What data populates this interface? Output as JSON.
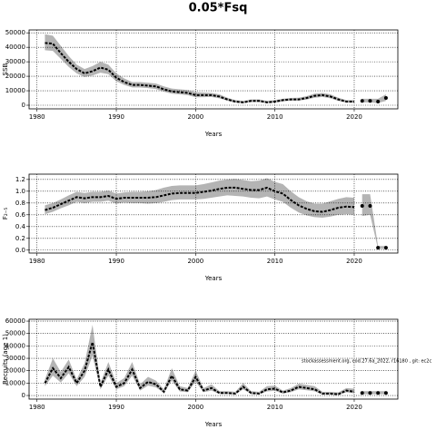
{
  "title": "0.05*Fsq",
  "chart_data": [
    {
      "type": "line",
      "ylabel": "SSB",
      "xlabel": "Years",
      "color": "#000000",
      "band_color": "#b4b4b4",
      "grid": true,
      "xlim": [
        1979,
        2025.5
      ],
      "xticks": [
        1980,
        1990,
        2000,
        2010,
        2020
      ],
      "ylim": [
        -2500,
        52000
      ],
      "yticks": [
        0,
        10000,
        20000,
        30000,
        40000,
        50000
      ],
      "x": [
        1981,
        1982,
        1983,
        1984,
        1985,
        1986,
        1987,
        1988,
        1989,
        1990,
        1991,
        1992,
        1993,
        1994,
        1995,
        1996,
        1997,
        1998,
        1999,
        2000,
        2001,
        2002,
        2003,
        2004,
        2005,
        2006,
        2007,
        2008,
        2009,
        2010,
        2011,
        2012,
        2013,
        2014,
        2015,
        2016,
        2017,
        2018,
        2019,
        2020
      ],
      "values": [
        43000,
        42500,
        36000,
        30000,
        25000,
        22000,
        23500,
        26000,
        24500,
        19000,
        16000,
        14000,
        14000,
        13500,
        13000,
        11000,
        9500,
        9000,
        8500,
        7000,
        7000,
        7000,
        6000,
        4000,
        2500,
        2000,
        3000,
        3000,
        2000,
        2500,
        3500,
        4000,
        4000,
        5000,
        6500,
        7000,
        6000,
        4000,
        2500,
        2500
      ],
      "upper": [
        49000,
        48000,
        41000,
        34000,
        28000,
        25000,
        27000,
        30000,
        28000,
        22000,
        18500,
        16000,
        16000,
        15500,
        15000,
        13000,
        11500,
        11000,
        10500,
        9000,
        8800,
        8500,
        7500,
        5200,
        3500,
        3000,
        4000,
        4000,
        3000,
        3500,
        4500,
        5000,
        5200,
        6300,
        8000,
        8500,
        7500,
        5200,
        3500,
        3500
      ],
      "lower": [
        38000,
        37500,
        32000,
        26500,
        22000,
        19500,
        20500,
        22500,
        21500,
        16500,
        14000,
        12300,
        12200,
        11800,
        11200,
        9300,
        8000,
        7500,
        7000,
        5500,
        5600,
        5700,
        4800,
        3100,
        1800,
        1400,
        2200,
        2200,
        1300,
        1800,
        2700,
        3100,
        3100,
        3900,
        5200,
        5700,
        4800,
        3000,
        1800,
        1700
      ],
      "proj_x": [
        2021,
        2022,
        2023,
        2024
      ],
      "proj_values": [
        3000,
        3000,
        2500,
        5000
      ],
      "proj_lower": [
        2000,
        2000,
        1500,
        3000
      ],
      "proj_upper": [
        4500,
        4500,
        4500,
        7500
      ]
    },
    {
      "type": "line",
      "ylabel": "F₂₋₅",
      "xlabel": "Years",
      "color": "#000000",
      "band_color": "#b4b4b4",
      "grid": true,
      "xlim": [
        1979,
        2025.5
      ],
      "xticks": [
        1980,
        1990,
        2000,
        2010,
        2020
      ],
      "ylim": [
        -0.05,
        1.29
      ],
      "yticks": [
        {
          "value": 0,
          "label": "0.0"
        },
        0.2,
        0.4,
        0.6,
        0.8,
        {
          "value": 1,
          "label": "1.0"
        },
        1.2
      ],
      "x": [
        1981,
        1982,
        1983,
        1984,
        1985,
        1986,
        1987,
        1988,
        1989,
        1990,
        1991,
        1992,
        1993,
        1994,
        1995,
        1996,
        1997,
        1998,
        1999,
        2000,
        2001,
        2002,
        2003,
        2004,
        2005,
        2006,
        2007,
        2008,
        2009,
        2010,
        2011,
        2012,
        2013,
        2014,
        2015,
        2016,
        2017,
        2018,
        2019,
        2020
      ],
      "values": [
        0.68,
        0.72,
        0.78,
        0.84,
        0.9,
        0.88,
        0.9,
        0.9,
        0.92,
        0.87,
        0.89,
        0.89,
        0.89,
        0.89,
        0.9,
        0.93,
        0.96,
        0.97,
        0.97,
        0.97,
        0.99,
        1.01,
        1.04,
        1.06,
        1.06,
        1.04,
        1.02,
        1.02,
        1.06,
        1.0,
        0.96,
        0.85,
        0.76,
        0.7,
        0.66,
        0.65,
        0.68,
        0.72,
        0.74,
        0.73
      ],
      "upper": [
        0.76,
        0.8,
        0.86,
        0.93,
        0.99,
        0.97,
        0.99,
        0.99,
        1.01,
        0.96,
        0.98,
        0.99,
        0.99,
        1.0,
        1.02,
        1.06,
        1.09,
        1.1,
        1.1,
        1.1,
        1.12,
        1.15,
        1.18,
        1.2,
        1.21,
        1.19,
        1.17,
        1.18,
        1.22,
        1.16,
        1.12,
        1.0,
        0.9,
        0.83,
        0.79,
        0.79,
        0.83,
        0.87,
        0.9,
        0.89
      ],
      "lower": [
        0.61,
        0.65,
        0.71,
        0.76,
        0.82,
        0.8,
        0.82,
        0.82,
        0.84,
        0.79,
        0.81,
        0.8,
        0.8,
        0.79,
        0.8,
        0.82,
        0.85,
        0.86,
        0.86,
        0.86,
        0.87,
        0.89,
        0.91,
        0.93,
        0.92,
        0.91,
        0.89,
        0.88,
        0.91,
        0.86,
        0.82,
        0.72,
        0.64,
        0.59,
        0.56,
        0.55,
        0.57,
        0.6,
        0.61,
        0.6
      ],
      "proj_x": [
        2021,
        2022,
        2023,
        2024
      ],
      "proj_values": [
        0.75,
        0.75,
        0.04,
        0.04
      ],
      "proj_lower": [
        0.58,
        0.6,
        0.02,
        0.02
      ],
      "proj_upper": [
        0.95,
        0.95,
        0.07,
        0.07
      ]
    },
    {
      "type": "line",
      "ylabel": "Recruits (age 1)",
      "xlabel": "Years",
      "color": "#000000",
      "band_color": "#b4b4b4",
      "grid": true,
      "annotation": "stockassessment.org, cod.27.6a_2022, r16180 , git: ec2c",
      "xlim": [
        1979,
        2025.5
      ],
      "xticks": [
        1980,
        1990,
        2000,
        2010,
        2020
      ],
      "ylim": [
        -2900,
        61500
      ],
      "yticks": [
        0,
        10000,
        20000,
        30000,
        40000,
        50000,
        60000
      ],
      "x": [
        1981,
        1982,
        1983,
        1984,
        1985,
        1986,
        1987,
        1988,
        1989,
        1990,
        1991,
        1992,
        1993,
        1994,
        1995,
        1996,
        1997,
        1998,
        1999,
        2000,
        2001,
        2002,
        2003,
        2004,
        2005,
        2006,
        2007,
        2008,
        2009,
        2010,
        2011,
        2012,
        2013,
        2014,
        2015,
        2016,
        2017,
        2018,
        2019,
        2020
      ],
      "values": [
        10000,
        22000,
        14000,
        23000,
        10000,
        20000,
        43000,
        7000,
        21000,
        7000,
        10000,
        21000,
        6000,
        11000,
        9000,
        3000,
        16000,
        5000,
        4000,
        15000,
        4000,
        6000,
        2000,
        2000,
        1500,
        7000,
        2000,
        1500,
        5000,
        5500,
        2500,
        4000,
        7000,
        6000,
        5000,
        1500,
        1500,
        1000,
        4000,
        3000
      ],
      "upper": [
        13000,
        30000,
        19000,
        29000,
        13000,
        26000,
        57000,
        10000,
        27000,
        10000,
        14000,
        27000,
        9000,
        15000,
        12000,
        5000,
        22000,
        7500,
        6000,
        20000,
        6000,
        9000,
        3500,
        3500,
        3000,
        10000,
        3500,
        3000,
        7500,
        8000,
        4000,
        6000,
        9500,
        8500,
        7500,
        3000,
        3000,
        2500,
        6000,
        5500
      ],
      "lower": [
        7500,
        16000,
        10500,
        18000,
        7500,
        15000,
        32000,
        5000,
        16000,
        5000,
        7500,
        16000,
        4000,
        8000,
        6500,
        2000,
        12000,
        3300,
        2700,
        11000,
        2700,
        4000,
        1200,
        1200,
        900,
        5000,
        1200,
        900,
        3300,
        3800,
        1500,
        2700,
        5000,
        4200,
        3400,
        800,
        800,
        500,
        2600,
        1800
      ],
      "proj_x": [
        2021,
        2022,
        2023,
        2024
      ],
      "proj_values": [
        2000,
        2000,
        2000,
        2000
      ],
      "proj_lower": [
        1000,
        1000,
        1000,
        1000
      ],
      "proj_upper": [
        3500,
        3500,
        3500,
        3500
      ]
    }
  ]
}
